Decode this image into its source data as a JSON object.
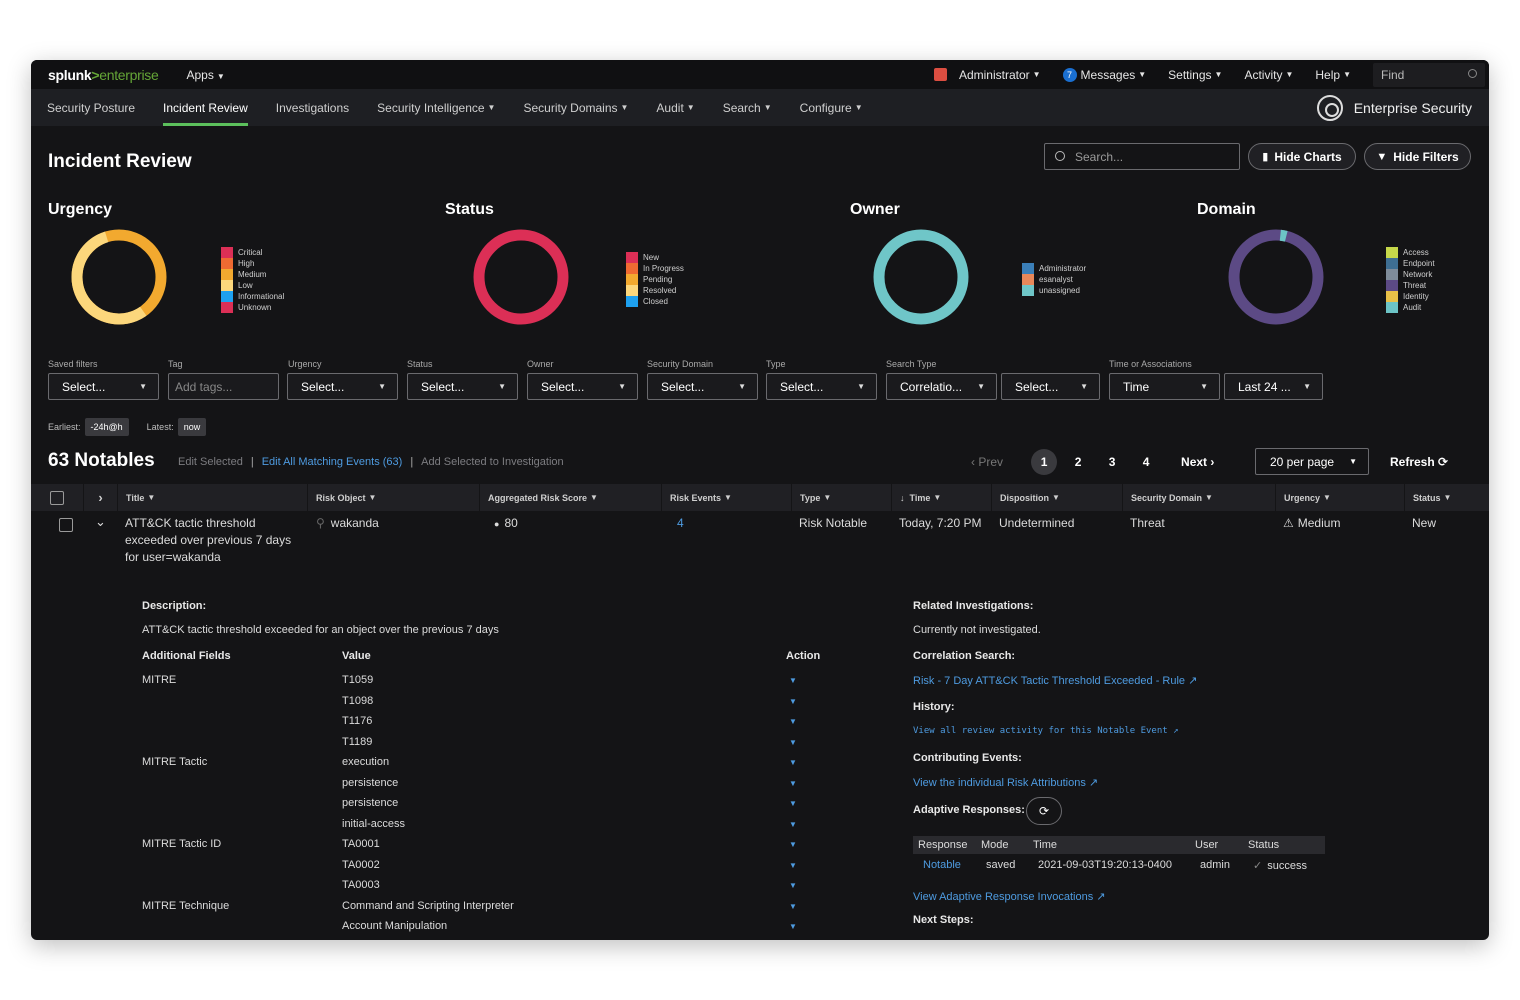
{
  "topbar": {
    "logo_main": "splunk",
    "logo_gt": ">",
    "logo_ent": "enterprise",
    "apps": "Apps",
    "administrator": "Administrator",
    "messages_count": "7",
    "messages": "Messages",
    "settings": "Settings",
    "activity": "Activity",
    "help": "Help",
    "find_placeholder": "Find"
  },
  "nav": {
    "items": [
      "Security Posture",
      "Incident Review",
      "Investigations",
      "Security Intelligence",
      "Security Domains",
      "Audit",
      "Search",
      "Configure"
    ],
    "active": "Incident Review",
    "brand": "Enterprise Security"
  },
  "header": {
    "title": "Incident Review",
    "search_placeholder": "Search...",
    "hide_charts": "Hide Charts",
    "hide_filters": "Hide Filters"
  },
  "charts": {
    "urgency": {
      "title": "Urgency",
      "legend": [
        {
          "label": "Critical",
          "color": "#dc2f56"
        },
        {
          "label": "High",
          "color": "#ef6a32"
        },
        {
          "label": "Medium",
          "color": "#f2a92f"
        },
        {
          "label": "Low",
          "color": "#fcd77c"
        },
        {
          "label": "Informational",
          "color": "#1ea1f0"
        },
        {
          "label": "Unknown",
          "color": "#dc2f56"
        }
      ]
    },
    "status": {
      "title": "Status",
      "legend": [
        {
          "label": "New",
          "color": "#dc2f56"
        },
        {
          "label": "In Progress",
          "color": "#ef6a32"
        },
        {
          "label": "Pending",
          "color": "#f2a92f"
        },
        {
          "label": "Resolved",
          "color": "#fcd77c"
        },
        {
          "label": "Closed",
          "color": "#1ea1f0"
        }
      ]
    },
    "owner": {
      "title": "Owner",
      "legend": [
        {
          "label": "Administrator",
          "color": "#3b7fb8"
        },
        {
          "label": "esanalyst",
          "color": "#e8885a"
        },
        {
          "label": "unassigned",
          "color": "#6fc6c8"
        }
      ]
    },
    "domain": {
      "title": "Domain",
      "legend": [
        {
          "label": "Access",
          "color": "#c6d84a"
        },
        {
          "label": "Endpoint",
          "color": "#3e6e92"
        },
        {
          "label": "Network",
          "color": "#7f8c9a"
        },
        {
          "label": "Threat",
          "color": "#5c4a85"
        },
        {
          "label": "Identity",
          "color": "#e8c048"
        },
        {
          "label": "Audit",
          "color": "#6cc4c6"
        }
      ]
    }
  },
  "filters": [
    {
      "label": "Saved filters",
      "value": "Select..."
    },
    {
      "label": "Tag",
      "value": "Add tags..."
    },
    {
      "label": "Urgency",
      "value": "Select..."
    },
    {
      "label": "Status",
      "value": "Select..."
    },
    {
      "label": "Owner",
      "value": "Select..."
    },
    {
      "label": "Security Domain",
      "value": "Select..."
    },
    {
      "label": "Type",
      "value": "Select..."
    },
    {
      "label": "Search Type",
      "value": "Correlatio..."
    },
    {
      "label": "",
      "value": "Select..."
    },
    {
      "label": "Time or Associations",
      "value": "Time"
    },
    {
      "label": "",
      "value": "Last 24 ..."
    }
  ],
  "time": {
    "earliest_label": "Earliest:",
    "earliest": "-24h@h",
    "latest_label": "Latest:",
    "latest": "now"
  },
  "notables": {
    "title": "63 Notables",
    "edit_selected": "Edit Selected",
    "edit_all": "Edit All Matching Events (63)",
    "add_to_investigation": "Add Selected to Investigation",
    "prev": "Prev",
    "pages": [
      "1",
      "2",
      "3",
      "4"
    ],
    "next": "Next",
    "per_page": "20 per page",
    "refresh": "Refresh"
  },
  "columns": [
    "Title",
    "Risk Object",
    "Aggregated Risk Score",
    "Risk Events",
    "Type",
    "Time",
    "Disposition",
    "Security Domain",
    "Urgency",
    "Status"
  ],
  "row": {
    "title_lines": [
      "ATT&CK tactic threshold",
      "exceeded over previous 7 days",
      "for user=wakanda"
    ],
    "risk_object": "wakanda",
    "risk_score": "80",
    "risk_events": "4",
    "type": "Risk Notable",
    "time": "Today, 7:20 PM",
    "disposition": "Undetermined",
    "security_domain": "Threat",
    "urgency": "Medium",
    "status": "New"
  },
  "detail": {
    "description_label": "Description:",
    "description": "ATT&CK tactic threshold exceeded for an object over the previous 7 days",
    "additional_fields_label": "Additional Fields",
    "value_label": "Value",
    "action_label": "Action",
    "fields": [
      {
        "name": "MITRE",
        "value": "T1059"
      },
      {
        "name": "",
        "value": "T1098"
      },
      {
        "name": "",
        "value": "T1176"
      },
      {
        "name": "",
        "value": "T1189"
      },
      {
        "name": "MITRE Tactic",
        "value": "execution"
      },
      {
        "name": "",
        "value": "persistence"
      },
      {
        "name": "",
        "value": "persistence"
      },
      {
        "name": "",
        "value": "initial-access"
      },
      {
        "name": "MITRE Tactic ID",
        "value": "TA0001"
      },
      {
        "name": "",
        "value": "TA0002"
      },
      {
        "name": "",
        "value": "TA0003"
      },
      {
        "name": "MITRE Technique",
        "value": "Command and Scripting Interpreter"
      },
      {
        "name": "",
        "value": "Account Manipulation"
      }
    ],
    "related_label": "Related Investigations:",
    "related_value": "Currently not investigated.",
    "correlation_label": "Correlation Search:",
    "correlation_link": "Risk - 7 Day ATT&CK Tactic Threshold Exceeded - Rule",
    "history_label": "History:",
    "history_link": "View all review activity for this Notable Event",
    "contributing_label": "Contributing Events:",
    "contributing_link": "View the individual Risk Attributions",
    "adaptive_label": "Adaptive Responses:",
    "ar_columns": [
      "Response",
      "Mode",
      "Time",
      "User",
      "Status"
    ],
    "ar_row": {
      "response": "Notable",
      "mode": "saved",
      "time": "2021-09-03T19:20:13-0400",
      "user": "admin",
      "status": "success"
    },
    "ar_invocations_link": "View Adaptive Response Invocations",
    "next_steps_label": "Next Steps:"
  }
}
